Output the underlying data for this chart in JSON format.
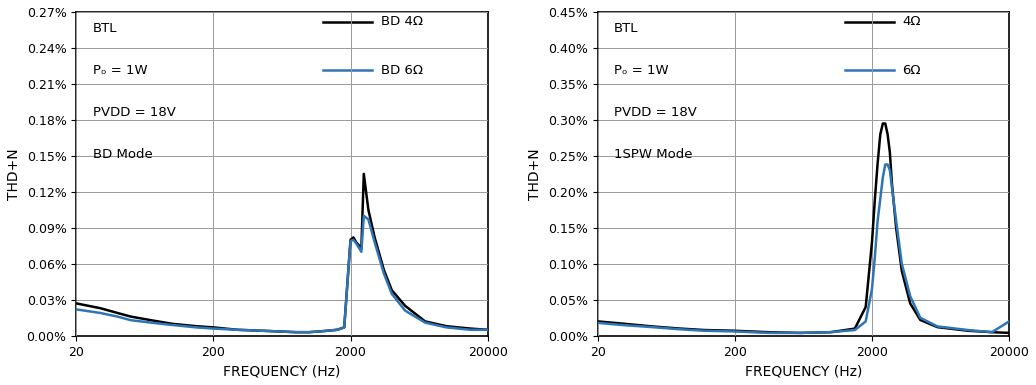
{
  "legend_colors": [
    "#000000",
    "#2e75b6"
  ],
  "bg_color": "#ffffff",
  "line_width": 1.8,
  "annotation_fontsize": 9.5,
  "legend_fontsize": 9.5,
  "axis_label_fontsize": 10,
  "tick_fontsize": 9,
  "chart1": {
    "annotation_lines": [
      "BTL",
      "Pₒ = 1W",
      "PVDD = 18V",
      "BD Mode"
    ],
    "legend": [
      "BD 4Ω",
      "BD 6Ω"
    ],
    "ylabel": "THD+N",
    "xlabel": "FREQUENCY (Hz)",
    "yticks": [
      0.0,
      0.03,
      0.06,
      0.09,
      0.12,
      0.15,
      0.18,
      0.21,
      0.24,
      0.27
    ],
    "ytick_labels": [
      "0.00%",
      "0.03%",
      "0.06%",
      "0.09%",
      "0.12%",
      "0.15%",
      "0.18%",
      "0.21%",
      "0.24%",
      "0.27%"
    ],
    "ylim": [
      0.0,
      0.27
    ],
    "xlim_log": [
      20,
      20000
    ],
    "xticks": [
      20,
      200,
      2000,
      20000
    ],
    "xtick_labels": [
      "20",
      "200",
      "2000",
      "20000"
    ],
    "line1_x": [
      20,
      30,
      40,
      50,
      70,
      100,
      150,
      200,
      300,
      500,
      800,
      1000,
      1300,
      1600,
      1800,
      2000,
      2100,
      2200,
      2400,
      2500,
      2700,
      3000,
      3500,
      4000,
      5000,
      7000,
      10000,
      15000,
      20000
    ],
    "line1_y": [
      0.027,
      0.023,
      0.019,
      0.016,
      0.013,
      0.01,
      0.008,
      0.007,
      0.005,
      0.004,
      0.003,
      0.003,
      0.004,
      0.005,
      0.007,
      0.08,
      0.082,
      0.078,
      0.073,
      0.135,
      0.105,
      0.082,
      0.055,
      0.038,
      0.025,
      0.012,
      0.008,
      0.006,
      0.005
    ],
    "line2_x": [
      20,
      30,
      40,
      50,
      70,
      100,
      150,
      200,
      300,
      500,
      800,
      1000,
      1300,
      1600,
      1800,
      2000,
      2100,
      2200,
      2400,
      2500,
      2700,
      3000,
      3500,
      4000,
      5000,
      7000,
      10000,
      15000,
      20000
    ],
    "line2_y": [
      0.022,
      0.019,
      0.016,
      0.013,
      0.011,
      0.009,
      0.007,
      0.006,
      0.005,
      0.004,
      0.003,
      0.003,
      0.004,
      0.005,
      0.007,
      0.079,
      0.08,
      0.077,
      0.07,
      0.1,
      0.097,
      0.078,
      0.052,
      0.035,
      0.021,
      0.011,
      0.007,
      0.005,
      0.005
    ]
  },
  "chart2": {
    "annotation_lines": [
      "BTL",
      "Pₒ = 1W",
      "PVDD = 18V",
      "1SPW Mode"
    ],
    "legend": [
      "4Ω",
      "6Ω"
    ],
    "ylabel": "THD+N",
    "xlabel": "FREQUENCY (Hz)",
    "yticks": [
      0.0,
      0.05,
      0.1,
      0.15,
      0.2,
      0.25,
      0.3,
      0.35,
      0.4,
      0.45
    ],
    "ytick_labels": [
      "0.00%",
      "0.05%",
      "0.10%",
      "0.15%",
      "0.20%",
      "0.25%",
      "0.30%",
      "0.35%",
      "0.40%",
      "0.45%"
    ],
    "ylim": [
      0.0,
      0.45
    ],
    "xlim_log": [
      20,
      20000
    ],
    "xticks": [
      20,
      200,
      2000,
      20000
    ],
    "xtick_labels": [
      "20",
      "200",
      "2000",
      "20000"
    ],
    "line1_x": [
      20,
      30,
      50,
      80,
      120,
      200,
      350,
      600,
      1000,
      1500,
      1800,
      2000,
      2100,
      2200,
      2300,
      2400,
      2500,
      2600,
      2700,
      2800,
      3000,
      3300,
      3800,
      4500,
      6000,
      10000,
      15000,
      20000
    ],
    "line1_y": [
      0.02,
      0.017,
      0.013,
      0.01,
      0.008,
      0.007,
      0.005,
      0.004,
      0.005,
      0.01,
      0.04,
      0.13,
      0.19,
      0.24,
      0.28,
      0.295,
      0.295,
      0.28,
      0.255,
      0.21,
      0.15,
      0.09,
      0.045,
      0.022,
      0.012,
      0.007,
      0.005,
      0.004
    ],
    "line2_x": [
      20,
      30,
      50,
      80,
      120,
      200,
      350,
      600,
      1000,
      1500,
      1800,
      2000,
      2100,
      2200,
      2400,
      2500,
      2600,
      2700,
      2800,
      3000,
      3300,
      3800,
      4500,
      6000,
      10000,
      15000,
      20000
    ],
    "line2_y": [
      0.018,
      0.015,
      0.012,
      0.009,
      0.007,
      0.006,
      0.004,
      0.004,
      0.005,
      0.008,
      0.02,
      0.065,
      0.11,
      0.16,
      0.22,
      0.238,
      0.238,
      0.23,
      0.205,
      0.16,
      0.1,
      0.055,
      0.025,
      0.013,
      0.008,
      0.005,
      0.02
    ]
  }
}
